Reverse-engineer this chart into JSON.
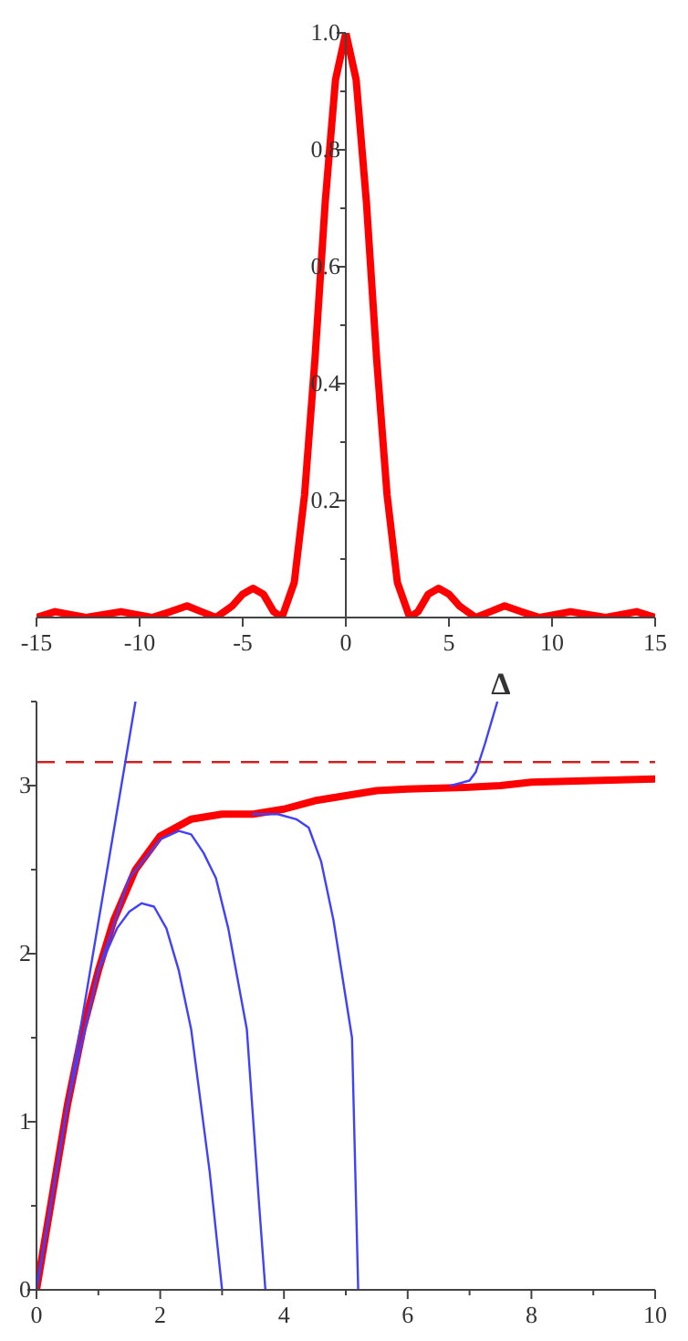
{
  "chart_data": [
    {
      "type": "line",
      "xlabel": "Δ",
      "x": [
        -15,
        -14.1,
        -12.6,
        -10.9,
        -9.4,
        -8.5,
        -7.7,
        -7,
        -6.3,
        -5.5,
        -5,
        -4.5,
        -4,
        -3.5,
        -3.1,
        -2.5,
        -2,
        -1.5,
        -1,
        -0.5,
        0,
        0.5,
        1,
        1.5,
        2,
        2.5,
        3.1,
        3.5,
        4,
        4.5,
        5,
        5.5,
        6.3,
        7,
        7.7,
        8.5,
        9.4,
        10.9,
        12.6,
        14.1,
        15
      ],
      "series": [
        {
          "color": "#ff0000",
          "values": [
            0,
            0.01,
            0,
            0.01,
            0,
            0.01,
            0.02,
            0.01,
            0,
            0.02,
            0.04,
            0.05,
            0.04,
            0.01,
            0,
            0.06,
            0.21,
            0.44,
            0.71,
            0.92,
            1,
            0.92,
            0.71,
            0.44,
            0.21,
            0.06,
            0,
            0.01,
            0.04,
            0.05,
            0.04,
            0.02,
            0,
            0.01,
            0.02,
            0.01,
            0,
            0.01,
            0,
            0.01,
            0
          ]
        }
      ],
      "xlim": [
        -15,
        15
      ],
      "ylim": [
        0,
        1
      ],
      "xticks": [
        -15,
        -10,
        -5,
        0,
        5,
        10,
        15
      ],
      "yticks": [
        {
          "value": 0.1,
          "label": null
        },
        0.2,
        {
          "value": 0.3,
          "label": null
        },
        0.4,
        {
          "value": 0.5,
          "label": null
        },
        0.6,
        {
          "value": 0.7,
          "label": null
        },
        0.8,
        {
          "value": 0.9,
          "label": null
        },
        {
          "value": 1,
          "label": "1.0"
        }
      ],
      "marker": "none",
      "line_style": "solid"
    },
    {
      "type": "line",
      "series": [
        {
          "color": "#ff0000",
          "x": [
            0,
            0.25,
            0.5,
            0.75,
            1,
            1.25,
            1.6,
            2,
            2.5,
            3,
            3.5,
            4,
            4.5,
            5,
            5.5,
            6,
            7,
            7.5,
            8,
            9,
            10
          ],
          "values": [
            0,
            0.55,
            1.1,
            1.55,
            1.9,
            2.2,
            2.5,
            2.7,
            2.8,
            2.83,
            2.83,
            2.86,
            2.91,
            2.94,
            2.97,
            2.98,
            2.99,
            3,
            3.02,
            3.03,
            3.04
          ]
        },
        {
          "color": "#4040ff",
          "x": [
            0,
            1.6
          ],
          "values": [
            0,
            3.5
          ]
        },
        {
          "color": "#4040ff",
          "x": [
            0,
            0.5,
            1,
            1.3,
            1.5,
            1.7,
            1.9,
            2.1,
            2.3,
            2.5,
            2.8,
            3
          ],
          "values": [
            0,
            1.1,
            1.9,
            2.15,
            2.25,
            2.3,
            2.28,
            2.15,
            1.9,
            1.55,
            0.7,
            0
          ]
        },
        {
          "color": "#4040ff",
          "x": [
            0,
            0.5,
            1,
            1.5,
            2,
            2.3,
            2.5,
            2.7,
            2.9,
            3.1,
            3.4,
            3.6,
            3.7
          ],
          "values": [
            0,
            1.1,
            1.9,
            2.45,
            2.68,
            2.73,
            2.71,
            2.6,
            2.45,
            2.15,
            1.55,
            0.5,
            0
          ]
        },
        {
          "color": "#4040ff",
          "x": [
            3.5,
            3.9,
            4.2,
            4.4,
            4.6,
            4.8,
            5.1,
            5.2
          ],
          "values": [
            2.83,
            2.83,
            2.8,
            2.75,
            2.55,
            2.2,
            1.5,
            0
          ]
        },
        {
          "color": "#4040ff",
          "x": [
            6.7,
            7,
            7.1,
            7.25,
            7.45
          ],
          "values": [
            3,
            3.03,
            3.08,
            3.25,
            3.5
          ]
        }
      ],
      "xlim": [
        0,
        10
      ],
      "ylim": [
        0,
        3.5
      ],
      "xticks": [
        0,
        {
          "value": 1,
          "label": null
        },
        2,
        {
          "value": 3,
          "label": null
        },
        4,
        {
          "value": 5,
          "label": null
        },
        6,
        {
          "value": 7,
          "label": null
        },
        8,
        {
          "value": 9,
          "label": null
        },
        10
      ],
      "yticks": [
        0,
        {
          "value": 0.5,
          "label": null
        },
        1,
        {
          "value": 1.5,
          "label": null
        },
        2,
        {
          "value": 2.5,
          "label": null
        },
        3,
        {
          "value": 3.5,
          "label": null
        }
      ],
      "ref_lines": [
        {
          "axis": "y",
          "value": 3.14,
          "color": "#cc2222",
          "line_style": "dashed"
        }
      ],
      "marker": "none",
      "line_style": "solid"
    }
  ]
}
